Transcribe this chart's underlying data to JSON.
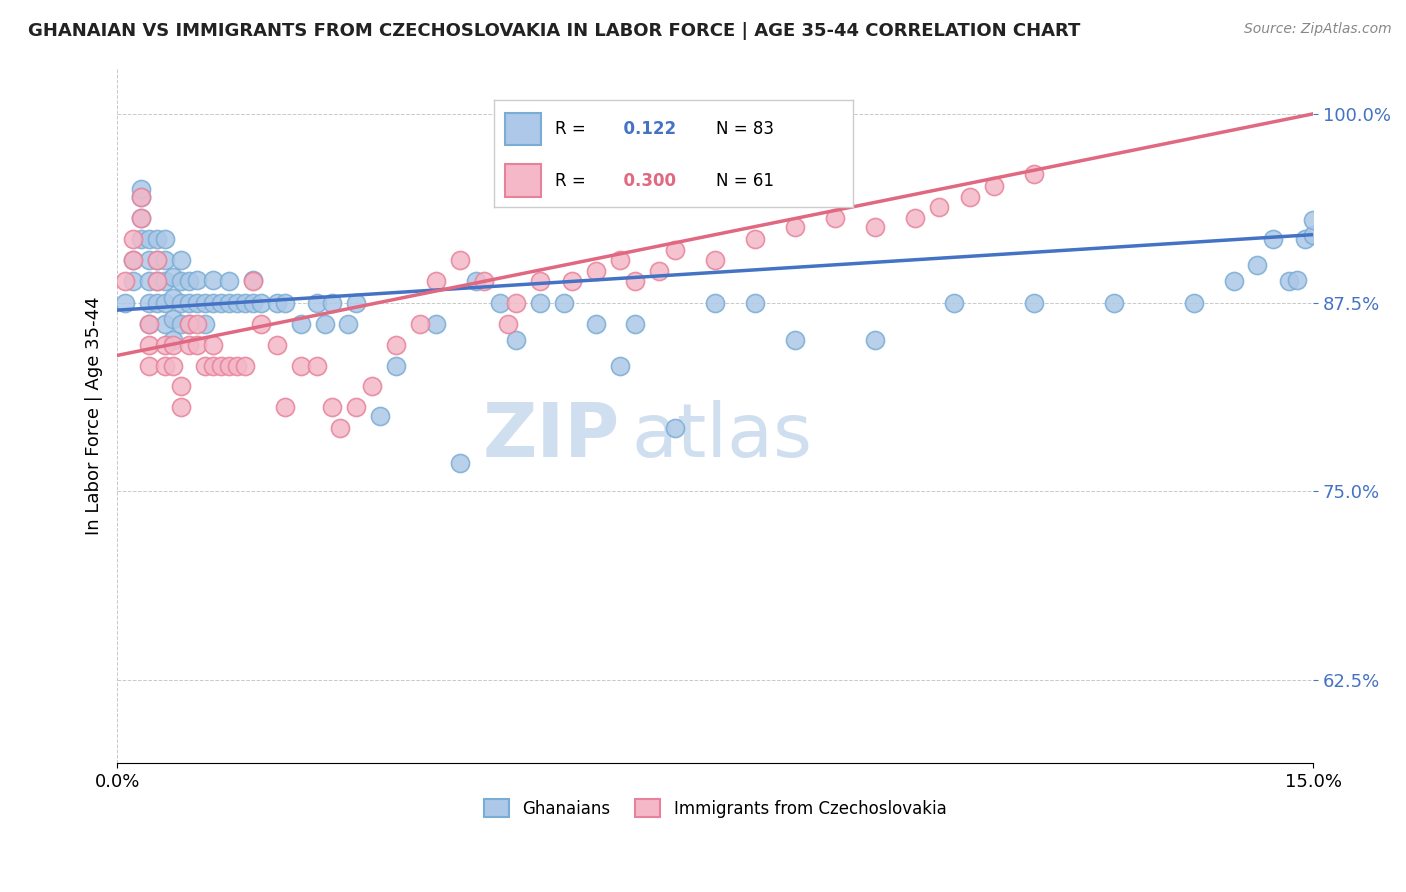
{
  "title": "GHANAIAN VS IMMIGRANTS FROM CZECHOSLOVAKIA IN LABOR FORCE | AGE 35-44 CORRELATION CHART",
  "source_text": "Source: ZipAtlas.com",
  "ylabel": "In Labor Force | Age 35-44",
  "xlim": [
    0.0,
    15.0
  ],
  "ylim": [
    57.0,
    103.0
  ],
  "yticks": [
    62.5,
    75.0,
    87.5,
    100.0
  ],
  "ytick_labels": [
    "62.5%",
    "75.0%",
    "87.5%",
    "100.0%"
  ],
  "xticks": [
    0.0,
    15.0
  ],
  "xtick_labels": [
    "0.0%",
    "15.0%"
  ],
  "blue_R": 0.122,
  "blue_N": 83,
  "pink_R": 0.3,
  "pink_N": 61,
  "blue_color": "#adc8e8",
  "blue_edge": "#7aadd4",
  "pink_color": "#f4b8c8",
  "pink_edge": "#e8829a",
  "blue_line_color": "#4472c4",
  "pink_line_color": "#e06880",
  "watermark_color": "#d0dff0",
  "background_color": "#ffffff",
  "legend_label_blue": "Ghanaians",
  "legend_label_pink": "Immigrants from Czechoslovakia",
  "blue_x": [
    0.1,
    0.2,
    0.2,
    0.3,
    0.3,
    0.3,
    0.3,
    0.4,
    0.4,
    0.4,
    0.4,
    0.4,
    0.5,
    0.5,
    0.5,
    0.5,
    0.6,
    0.6,
    0.6,
    0.6,
    0.6,
    0.7,
    0.7,
    0.7,
    0.7,
    0.8,
    0.8,
    0.8,
    0.8,
    0.9,
    0.9,
    0.9,
    1.0,
    1.0,
    1.1,
    1.1,
    1.2,
    1.2,
    1.3,
    1.4,
    1.4,
    1.5,
    1.6,
    1.7,
    1.7,
    1.8,
    2.0,
    2.1,
    2.3,
    2.5,
    2.6,
    2.7,
    2.9,
    3.0,
    3.3,
    3.5,
    4.0,
    4.3,
    4.5,
    4.8,
    5.0,
    5.3,
    5.6,
    6.0,
    6.3,
    6.5,
    7.0,
    7.5,
    8.0,
    8.5,
    9.5,
    10.5,
    11.5,
    12.5,
    13.5,
    14.0,
    14.3,
    14.5,
    14.7,
    14.8,
    14.9,
    15.0,
    15.0
  ],
  "blue_y": [
    87.5,
    88.9,
    90.3,
    91.7,
    93.1,
    94.5,
    95.0,
    86.1,
    87.5,
    88.9,
    90.3,
    91.7,
    87.5,
    88.9,
    90.3,
    91.7,
    86.1,
    87.5,
    88.9,
    90.3,
    91.7,
    85.0,
    86.4,
    87.8,
    89.2,
    86.1,
    87.5,
    88.9,
    90.3,
    86.1,
    87.5,
    88.9,
    87.5,
    89.0,
    86.1,
    87.5,
    87.5,
    89.0,
    87.5,
    87.5,
    88.9,
    87.5,
    87.5,
    87.5,
    89.0,
    87.5,
    87.5,
    87.5,
    86.1,
    87.5,
    86.1,
    87.5,
    86.1,
    87.5,
    80.0,
    83.3,
    86.1,
    76.9,
    88.9,
    87.5,
    85.0,
    87.5,
    87.5,
    86.1,
    83.3,
    86.1,
    79.2,
    87.5,
    87.5,
    85.0,
    85.0,
    87.5,
    87.5,
    87.5,
    87.5,
    88.9,
    90.0,
    91.7,
    88.9,
    89.0,
    91.7,
    92.0,
    93.0
  ],
  "pink_x": [
    0.1,
    0.2,
    0.2,
    0.3,
    0.3,
    0.4,
    0.4,
    0.4,
    0.5,
    0.5,
    0.6,
    0.6,
    0.7,
    0.7,
    0.8,
    0.8,
    0.9,
    0.9,
    1.0,
    1.0,
    1.1,
    1.2,
    1.2,
    1.3,
    1.4,
    1.5,
    1.6,
    1.7,
    1.8,
    2.0,
    2.1,
    2.3,
    2.5,
    2.7,
    2.8,
    3.0,
    3.2,
    3.5,
    3.8,
    4.0,
    4.3,
    4.6,
    4.9,
    5.0,
    5.3,
    5.7,
    6.0,
    6.3,
    6.5,
    6.8,
    7.0,
    7.5,
    8.0,
    8.5,
    9.0,
    9.5,
    10.0,
    10.3,
    10.7,
    11.0,
    11.5
  ],
  "pink_y": [
    88.9,
    90.3,
    91.7,
    93.1,
    94.5,
    83.3,
    84.7,
    86.1,
    88.9,
    90.3,
    83.3,
    84.7,
    83.3,
    84.7,
    80.6,
    82.0,
    84.7,
    86.1,
    84.7,
    86.1,
    83.3,
    83.3,
    84.7,
    83.3,
    83.3,
    83.3,
    83.3,
    88.9,
    86.1,
    84.7,
    80.6,
    83.3,
    83.3,
    80.6,
    79.2,
    80.6,
    82.0,
    84.7,
    86.1,
    88.9,
    90.3,
    88.9,
    86.1,
    87.5,
    88.9,
    88.9,
    89.6,
    90.3,
    88.9,
    89.6,
    91.0,
    90.3,
    91.7,
    92.5,
    93.1,
    92.5,
    93.1,
    93.8,
    94.5,
    95.2,
    96.0
  ]
}
